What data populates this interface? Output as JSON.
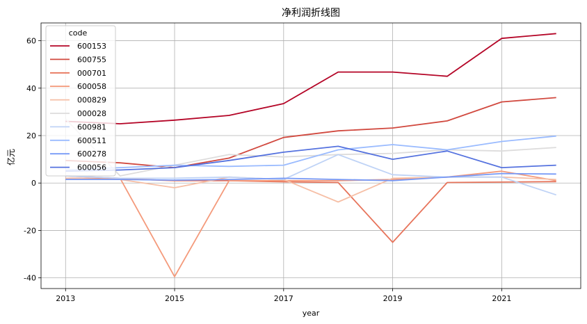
{
  "chart_data": {
    "type": "line",
    "title": "净利润折线图",
    "xlabel": "year",
    "ylabel": "亿元",
    "x": [
      2013,
      2014,
      2015,
      2016,
      2017,
      2018,
      2019,
      2020,
      2021,
      2022
    ],
    "xticks": [
      2013,
      2015,
      2017,
      2019,
      2021
    ],
    "yticks": [
      -40,
      -20,
      0,
      20,
      40,
      60
    ],
    "xlim": [
      2012.55,
      2022.45
    ],
    "ylim": [
      -44.5,
      67.5
    ],
    "grid": true,
    "legend": {
      "title": "code",
      "position": "top-left"
    },
    "series": [
      {
        "name": "600153",
        "color": "#b40426",
        "values": [
          26.0,
          25.0,
          26.5,
          28.5,
          33.5,
          46.8,
          46.8,
          45.0,
          61.0,
          63.0
        ]
      },
      {
        "name": "600755",
        "color": "#d1493f",
        "values": [
          9.5,
          8.5,
          6.5,
          10.5,
          19.2,
          22.0,
          23.2,
          26.2,
          34.2,
          36.0
        ]
      },
      {
        "name": "000701",
        "color": "#e7745b",
        "values": [
          2.0,
          1.8,
          1.0,
          1.0,
          0.5,
          0.2,
          -25.0,
          0.2,
          0.4,
          0.6
        ]
      },
      {
        "name": "600058",
        "color": "#f49a7b",
        "values": [
          3.0,
          2.0,
          -39.5,
          1.0,
          1.0,
          1.0,
          1.5,
          2.5,
          5.0,
          1.0
        ]
      },
      {
        "name": "000829",
        "color": "#f6bfa6",
        "values": [
          2.0,
          1.5,
          -2.0,
          2.5,
          1.5,
          -8.0,
          2.0,
          2.5,
          2.5,
          1.5
        ]
      },
      {
        "name": "000028",
        "color": "#dddcdc",
        "values": [
          27.0,
          3.0,
          7.5,
          12.0,
          11.0,
          12.0,
          12.5,
          14.0,
          13.5,
          15.0
        ]
      },
      {
        "name": "600981",
        "color": "#bfd3f6",
        "values": [
          3.0,
          2.0,
          2.0,
          2.5,
          1.5,
          12.0,
          3.5,
          2.5,
          2.5,
          -5.0
        ]
      },
      {
        "name": "600511",
        "color": "#9abbff",
        "values": [
          5.5,
          6.5,
          7.5,
          7.0,
          7.5,
          14.0,
          16.2,
          14.0,
          17.5,
          19.8
        ]
      },
      {
        "name": "600278",
        "color": "#779af7",
        "values": [
          1.5,
          1.5,
          1.2,
          1.5,
          2.0,
          1.5,
          1.0,
          2.5,
          4.0,
          3.8
        ]
      },
      {
        "name": "600056",
        "color": "#5572df",
        "values": [
          5.0,
          5.5,
          6.5,
          9.5,
          13.0,
          15.5,
          10.0,
          13.5,
          6.5,
          7.5
        ]
      }
    ]
  }
}
